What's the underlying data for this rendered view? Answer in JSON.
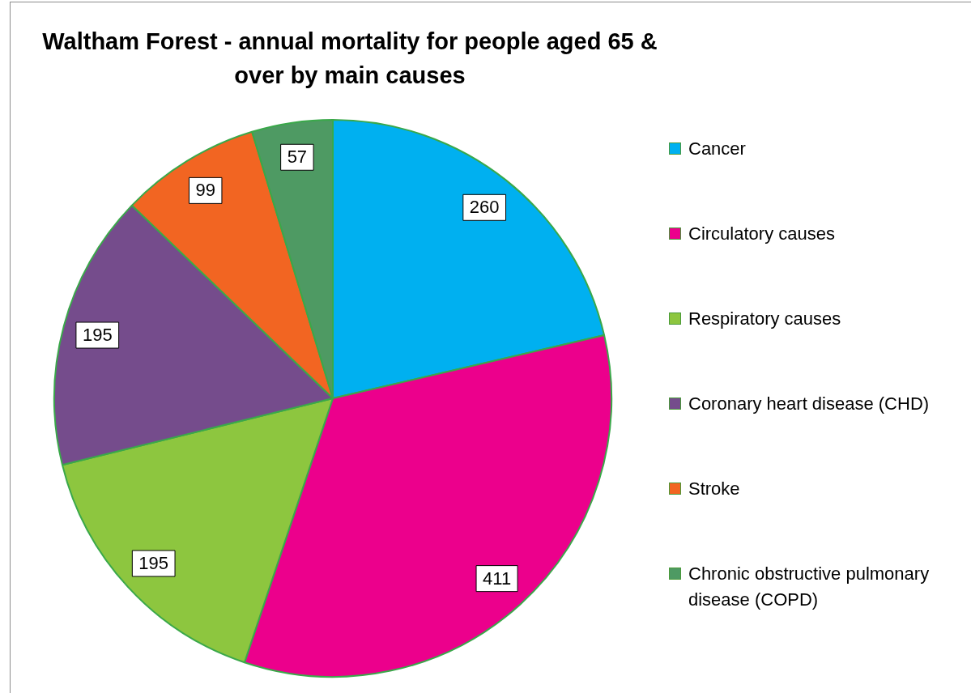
{
  "chart_data": {
    "type": "pie",
    "title": "Waltham Forest - annual mortality for people aged 65 & over by main causes",
    "categories": [
      "Cancer",
      "Circulatory causes",
      "Respiratory causes",
      "Coronary heart disease (CHD)",
      "Stroke",
      "Chronic obstructive pulmonary disease (COPD)"
    ],
    "values": [
      260,
      411,
      195,
      195,
      99,
      57
    ],
    "colors": [
      "#00b0f0",
      "#ec008c",
      "#8dc63f",
      "#754c8c",
      "#f26522",
      "#4e9a63"
    ],
    "data_labels": true,
    "legend": "right"
  }
}
